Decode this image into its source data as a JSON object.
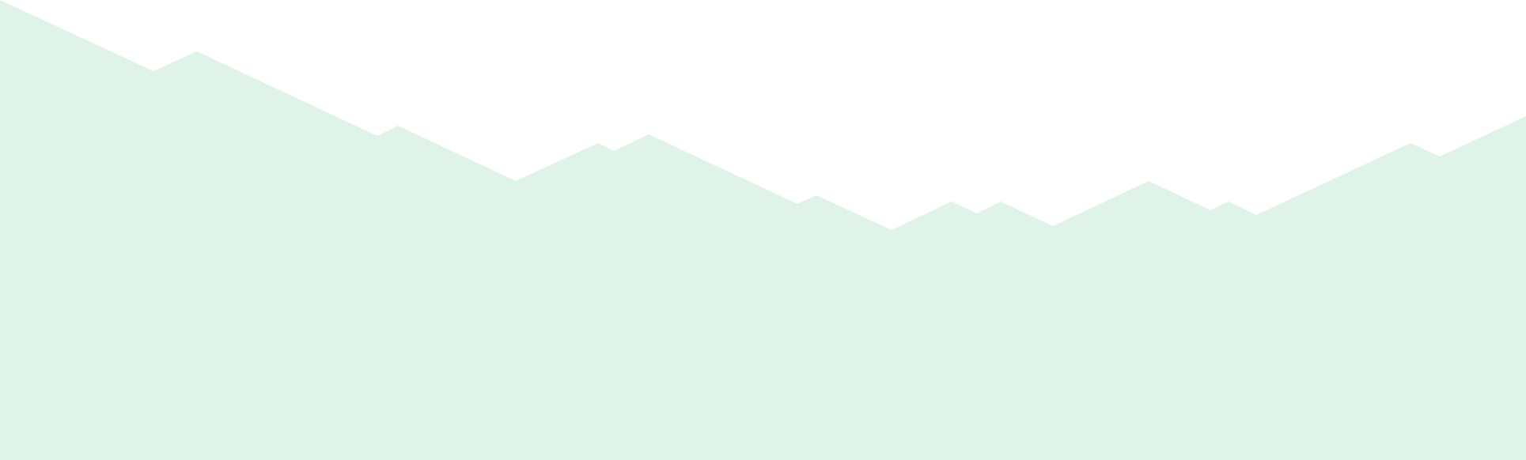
{
  "background_color": "#ffffff",
  "shape_fill_color": "#e0f3e8",
  "shape_description_icon": "mountain-silhouette"
}
